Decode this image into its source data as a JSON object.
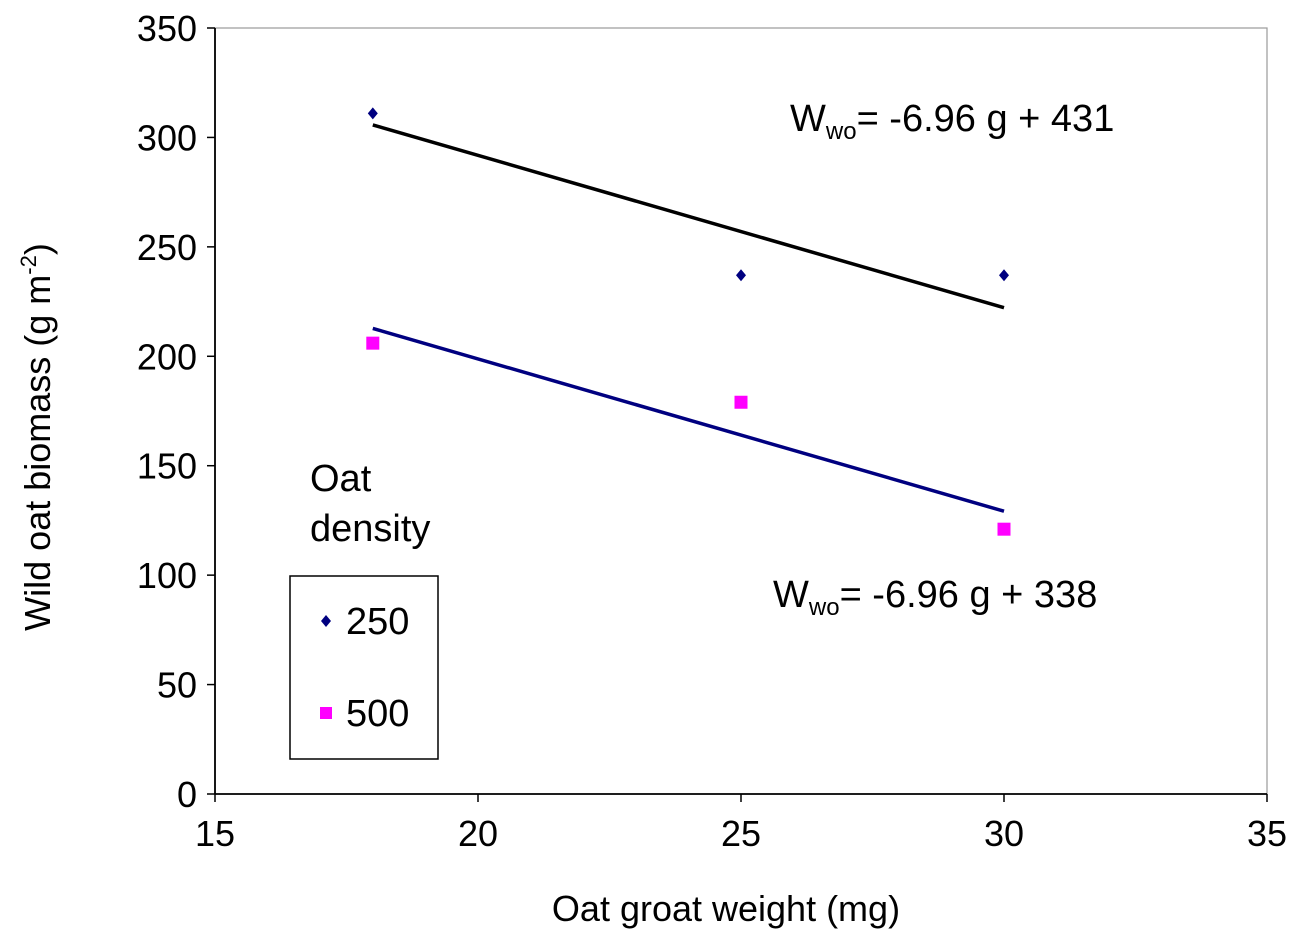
{
  "chart_data": {
    "type": "scatter",
    "title": "",
    "xlabel": "Oat groat weight (mg)",
    "ylabel": "Wild oat biomass (g m",
    "ylabel_sup": "-2",
    "ylabel_close": ")",
    "xlim": [
      15,
      35
    ],
    "ylim": [
      0,
      350
    ],
    "x_ticks": [
      "15",
      "20",
      "25",
      "30",
      "35"
    ],
    "y_ticks": [
      "0",
      "50",
      "100",
      "150",
      "200",
      "250",
      "300",
      "350"
    ],
    "grid": false,
    "legend": {
      "title_line1": "Oat",
      "title_line2": "density",
      "placement": "lower-left"
    },
    "series": [
      {
        "name": "250",
        "marker": "diamond",
        "color": "#000080",
        "x": [
          18,
          25,
          30
        ],
        "y": [
          311,
          237,
          237
        ],
        "fit": {
          "slope": -6.96,
          "intercept": 431,
          "x_range": [
            18,
            30
          ],
          "color": "#000000"
        },
        "equation": {
          "lhs": "W",
          "sub": "wo",
          "rhs": "= -6.96 g + 431"
        }
      },
      {
        "name": "500",
        "marker": "square",
        "color": "#ff00ff",
        "x": [
          18,
          25,
          30
        ],
        "y": [
          206,
          179,
          121
        ],
        "fit": {
          "slope": -6.96,
          "intercept": 338,
          "x_range": [
            18,
            30
          ],
          "color": "#000080"
        },
        "equation": {
          "lhs": "W",
          "sub": "wo",
          "rhs": "= -6.96 g + 338"
        }
      }
    ]
  }
}
